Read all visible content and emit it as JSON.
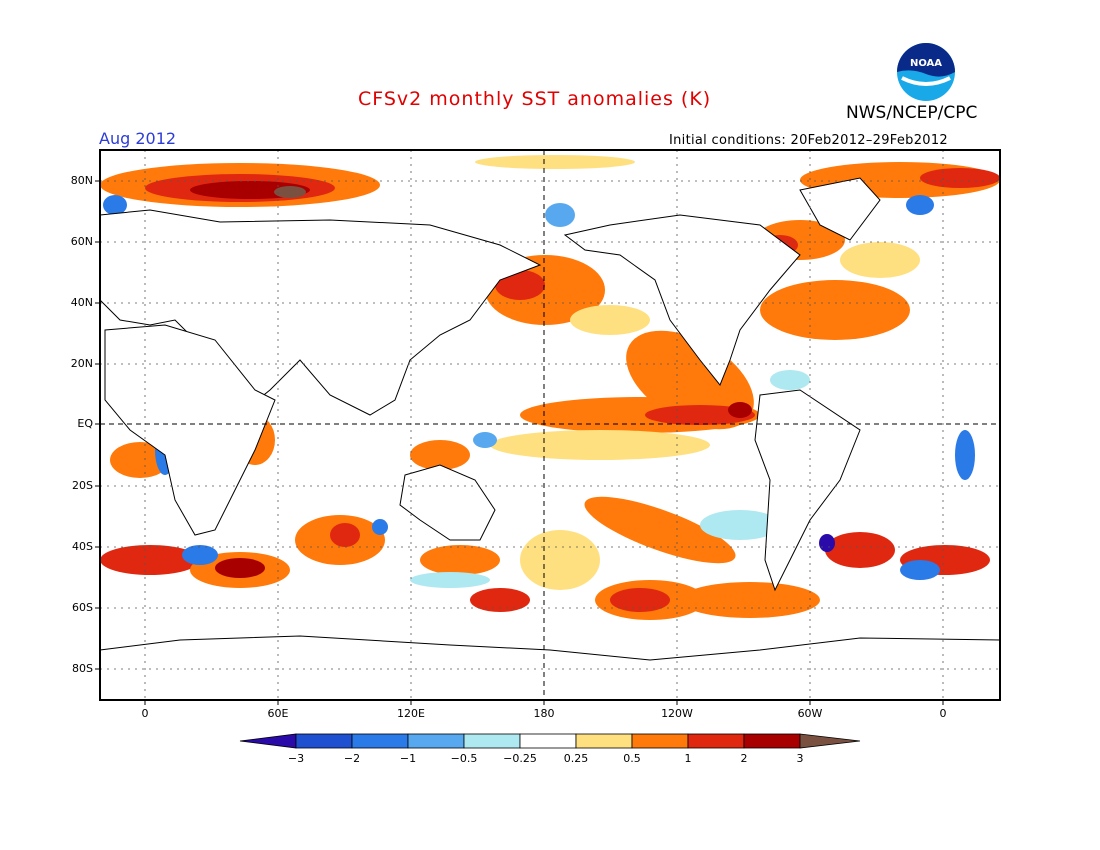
{
  "title": "CFSv2 monthly SST anomalies (K)",
  "agency": "NWS/NCEP/CPC",
  "logo_text": "NOAA",
  "valid_month": "Aug 2012",
  "initial_conditions": "Initial conditions: 20Feb2012–29Feb2012",
  "lat_labels": [
    "80N",
    "60N",
    "40N",
    "20N",
    "EQ",
    "20S",
    "40S",
    "60S",
    "80S"
  ],
  "lon_labels": [
    "0",
    "60E",
    "120E",
    "180",
    "120W",
    "60W",
    "0"
  ],
  "colorbar": {
    "labels": [
      "−3",
      "−2",
      "−1",
      "−0.5",
      "−0.25",
      "0.25",
      "0.5",
      "1",
      "2",
      "3"
    ],
    "colors": [
      "#2a0aa8",
      "#1e50d0",
      "#2a7ae8",
      "#58a8f0",
      "#aee8f0",
      "#ffffff",
      "#ffe080",
      "#ff7a0a",
      "#e02810",
      "#a80000",
      "#7a5040"
    ]
  }
}
